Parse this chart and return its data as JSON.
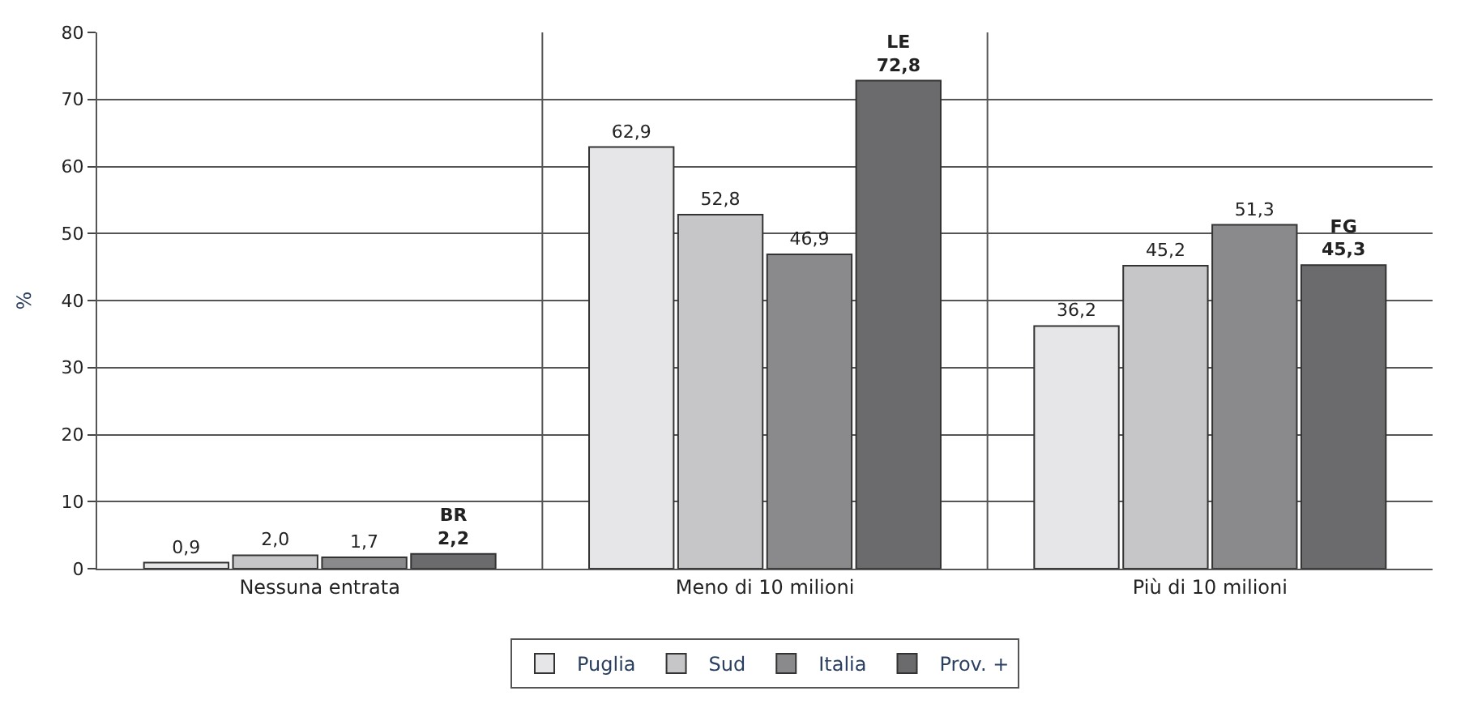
{
  "chart_data": {
    "type": "bar",
    "ylabel": "%",
    "categories": [
      "Nessuna entrata",
      "Meno di 10 milioni",
      "Più di 10 milioni"
    ],
    "series": [
      {
        "name": "Puglia",
        "color": "#e6e6e8",
        "values": [
          0.9,
          62.9,
          36.2
        ],
        "value_labels": [
          "0,9",
          "62,9",
          "36,2"
        ]
      },
      {
        "name": "Sud",
        "color": "#c6c6c8",
        "values": [
          2.0,
          52.8,
          45.2
        ],
        "value_labels": [
          "2,0",
          "52,8",
          "45,2"
        ]
      },
      {
        "name": "Italia",
        "color": "#8a8a8c",
        "values": [
          1.7,
          46.9,
          51.3
        ],
        "value_labels": [
          "1,7",
          "46,9",
          "51,3"
        ]
      },
      {
        "name": "Prov. +",
        "color": "#6b6b6d",
        "values": [
          2.2,
          72.8,
          45.3
        ],
        "value_labels": [
          "BR\n2,2",
          "LE\n72,8",
          "FG\n45,3"
        ]
      }
    ],
    "ylim": [
      0,
      80
    ],
    "yticks": [
      0,
      10,
      20,
      30,
      40,
      50,
      60,
      70,
      80
    ],
    "grid": true,
    "legend": "bottom"
  }
}
